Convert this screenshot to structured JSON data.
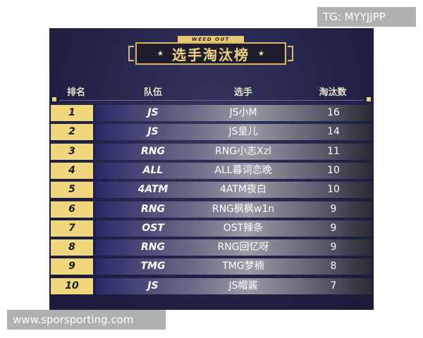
{
  "poster": {
    "subtitle": "WEED OUT",
    "title": "选手淘汰榜",
    "star_icon": "★"
  },
  "headers": {
    "rank": "排名",
    "team": "队伍",
    "player": "选手",
    "kills": "淘汰数"
  },
  "rows": [
    {
      "rank": "1",
      "team": "JS",
      "player": "JS小M",
      "kills": "16"
    },
    {
      "rank": "2",
      "team": "JS",
      "player": "JS皇儿",
      "kills": "14"
    },
    {
      "rank": "3",
      "team": "RNG",
      "player": "RNG小志Xzl",
      "kills": "11"
    },
    {
      "rank": "4",
      "team": "ALL",
      "player": "ALL暮词恋晚",
      "kills": "10"
    },
    {
      "rank": "5",
      "team": "4ATM",
      "player": "4ATM夜白",
      "kills": "10"
    },
    {
      "rank": "6",
      "team": "RNG",
      "player": "RNG枫枫w1n",
      "kills": "9"
    },
    {
      "rank": "7",
      "team": "OST",
      "player": "OST辣条",
      "kills": "9"
    },
    {
      "rank": "8",
      "team": "RNG",
      "player": "RNG回忆呀",
      "kills": "9"
    },
    {
      "rank": "9",
      "team": "TMG",
      "player": "TMG梦楠",
      "kills": "8"
    },
    {
      "rank": "10",
      "team": "JS",
      "player": "JS帽酱",
      "kills": "7"
    }
  ],
  "watermarks": {
    "top": "TG: MYYJJPP",
    "bottom": "www.sporsporting.com"
  },
  "colors": {
    "gold": "#f0d67c",
    "background": "#23234a"
  }
}
